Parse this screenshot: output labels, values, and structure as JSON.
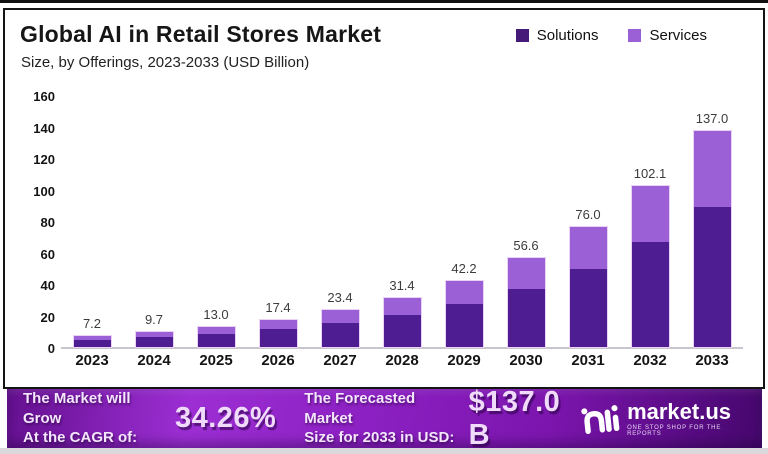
{
  "header": {
    "title": "Global AI in Retail Stores Market",
    "subtitle": "Size, by Offerings, 2023-2033 (USD Billion)"
  },
  "legend": [
    {
      "label": "Solutions",
      "color": "#451a78"
    },
    {
      "label": "Services",
      "color": "#9b5fd6"
    }
  ],
  "chart_data": {
    "type": "bar",
    "stacked": true,
    "title": "Global AI in Retail Stores Market Size, by Offerings, 2023-2033 (USD Billion)",
    "xlabel": "",
    "ylabel": "USD Billion",
    "ylim": [
      0,
      160
    ],
    "yticks": [
      0,
      20,
      40,
      60,
      80,
      100,
      120,
      140,
      160
    ],
    "grid": false,
    "legend_position": "top-right",
    "categories": [
      "2023",
      "2024",
      "2025",
      "2026",
      "2027",
      "2028",
      "2029",
      "2030",
      "2031",
      "2032",
      "2033"
    ],
    "totals": [
      7.2,
      9.7,
      13.0,
      17.4,
      23.4,
      31.4,
      42.2,
      56.6,
      76.0,
      102.1,
      137.0
    ],
    "total_labels": [
      "7.2",
      "9.7",
      "13.0",
      "17.4",
      "23.4",
      "31.4",
      "42.2",
      "56.6",
      "76.0",
      "102.1",
      "137.0"
    ],
    "series": [
      {
        "name": "Solutions",
        "color": "#4e1d92",
        "values": [
          4.7,
          6.3,
          8.5,
          11.3,
          15.2,
          20.4,
          27.4,
          36.8,
          49.4,
          66.4,
          89.1
        ]
      },
      {
        "name": "Services",
        "color": "#9b5fd6",
        "values": [
          2.5,
          3.4,
          4.5,
          6.1,
          8.2,
          11.0,
          14.8,
          19.8,
          26.6,
          35.7,
          47.9
        ]
      }
    ],
    "series_values_estimated_from_segment_heights": true
  },
  "banner": {
    "cagr_label_line1": "The Market will Grow",
    "cagr_label_line2": "At the CAGR of:",
    "cagr_value": "34.26%",
    "forecast_label_line1": "The Forecasted Market",
    "forecast_label_line2": "Size for 2033 in USD:",
    "forecast_value": "$137.0 B",
    "logo_text": "market.us",
    "logo_tagline": "ONE STOP SHOP FOR THE REPORTS"
  },
  "colors": {
    "solutions": "#4e1d92",
    "services": "#9b5fd6",
    "banner_purple": "#8c20c2",
    "axis_line": "#c9c5cc"
  }
}
